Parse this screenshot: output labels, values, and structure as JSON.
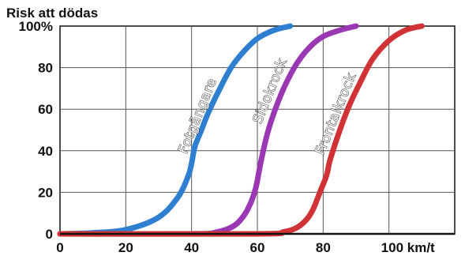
{
  "chart_data": {
    "type": "line",
    "ylabel": "Risk att dödas",
    "xlim": [
      0,
      120
    ],
    "ylim": [
      0,
      100
    ],
    "grid": true,
    "x_ticks": [
      {
        "value": 0,
        "label": "0"
      },
      {
        "value": 20,
        "label": "20"
      },
      {
        "value": 40,
        "label": "40"
      },
      {
        "value": 60,
        "label": "60"
      },
      {
        "value": 80,
        "label": "80"
      },
      {
        "value": 100,
        "label": "100 km/t"
      }
    ],
    "y_ticks": [
      {
        "value": 0,
        "label": "0"
      },
      {
        "value": 20,
        "label": "20"
      },
      {
        "value": 40,
        "label": "40"
      },
      {
        "value": 60,
        "label": "60"
      },
      {
        "value": 80,
        "label": "80"
      },
      {
        "value": 100,
        "label": "100%"
      }
    ],
    "series": [
      {
        "name": "Fotgängare",
        "color": "#2f7fd1",
        "label_at": {
          "x": 43,
          "y": 56
        },
        "points": [
          [
            0,
            0
          ],
          [
            10,
            0.5
          ],
          [
            20,
            2
          ],
          [
            30,
            8
          ],
          [
            36,
            18
          ],
          [
            39,
            28
          ],
          [
            40,
            34
          ],
          [
            41,
            42
          ],
          [
            43,
            50
          ],
          [
            45,
            58
          ],
          [
            48,
            68
          ],
          [
            52,
            80
          ],
          [
            56,
            88
          ],
          [
            60,
            94
          ],
          [
            65,
            98
          ],
          [
            70,
            100
          ]
        ]
      },
      {
        "name": "Sidokrock",
        "color": "#9a38b4",
        "label_at": {
          "x": 65,
          "y": 68
        },
        "points": [
          [
            0,
            0
          ],
          [
            40,
            0
          ],
          [
            48,
            1
          ],
          [
            53,
            4
          ],
          [
            56,
            9
          ],
          [
            58,
            15
          ],
          [
            59.5,
            22
          ],
          [
            60.5,
            30
          ],
          [
            61.5,
            38
          ],
          [
            63,
            48
          ],
          [
            65,
            58
          ],
          [
            68,
            70
          ],
          [
            72,
            82
          ],
          [
            76,
            90
          ],
          [
            80,
            95
          ],
          [
            85,
            98
          ],
          [
            90,
            100
          ]
        ]
      },
      {
        "name": "Frontalkrock",
        "color": "#d03236",
        "label_at": {
          "x": 85,
          "y": 57
        },
        "points": [
          [
            0,
            0
          ],
          [
            60,
            0
          ],
          [
            68,
            1
          ],
          [
            72,
            3
          ],
          [
            75,
            7
          ],
          [
            77,
            12
          ],
          [
            79,
            20
          ],
          [
            81,
            28
          ],
          [
            82,
            35
          ],
          [
            84,
            45
          ],
          [
            86,
            54
          ],
          [
            88,
            62
          ],
          [
            91,
            72
          ],
          [
            95,
            84
          ],
          [
            100,
            93
          ],
          [
            105,
            98
          ],
          [
            110,
            100
          ]
        ]
      }
    ]
  }
}
